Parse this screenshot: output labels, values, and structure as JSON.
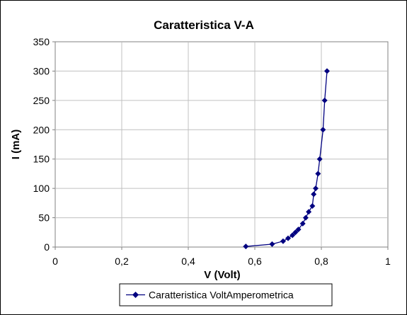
{
  "chart_data": {
    "type": "scatter",
    "title": "Caratteristica V-A",
    "xlabel": "V (Volt)",
    "ylabel": "I (mA)",
    "xlim": [
      0,
      1
    ],
    "ylim": [
      0,
      350
    ],
    "xticks": [
      "0",
      "0,2",
      "0,4",
      "0,6",
      "0,8",
      "1"
    ],
    "xtick_values": [
      0,
      0.2,
      0.4,
      0.6,
      0.8,
      1
    ],
    "yticks": [
      "0",
      "50",
      "100",
      "150",
      "200",
      "250",
      "300",
      "350"
    ],
    "ytick_values": [
      0,
      50,
      100,
      150,
      200,
      250,
      300,
      350
    ],
    "grid": true,
    "legend_position": "bottom",
    "line_color": "#000080",
    "series": [
      {
        "name": "Caratteristica VoltAmperometrica",
        "points": [
          [
            0.573,
            1
          ],
          [
            0.652,
            5
          ],
          [
            0.685,
            10
          ],
          [
            0.7,
            15
          ],
          [
            0.713,
            20
          ],
          [
            0.722,
            25
          ],
          [
            0.731,
            30
          ],
          [
            0.744,
            40
          ],
          [
            0.753,
            50
          ],
          [
            0.762,
            60
          ],
          [
            0.773,
            70
          ],
          [
            0.777,
            90
          ],
          [
            0.783,
            100
          ],
          [
            0.79,
            125
          ],
          [
            0.795,
            150
          ],
          [
            0.805,
            200
          ],
          [
            0.81,
            250
          ],
          [
            0.817,
            300
          ]
        ]
      }
    ]
  }
}
